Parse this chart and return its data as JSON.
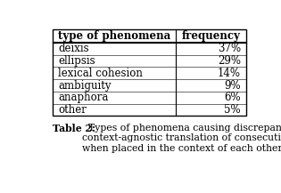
{
  "title_bold": "Table 2:",
  "caption_text": "  Types of phenomena causing discrepancy in\ncontext-agnostic translation of consecutive sentences\nwhen placed in the context of each other",
  "col_headers": [
    "type of phenomena",
    "frequency"
  ],
  "rows": [
    [
      "deixis",
      "37%"
    ],
    [
      "ellipsis",
      "29%"
    ],
    [
      "lexical cohesion",
      "14%"
    ],
    [
      "ambiguity",
      "9%"
    ],
    [
      "anaphora",
      "6%"
    ],
    [
      "other",
      "5%"
    ]
  ],
  "bg_color": "#ffffff",
  "header_font_size": 8.5,
  "body_font_size": 8.5,
  "caption_font_size": 7.8
}
